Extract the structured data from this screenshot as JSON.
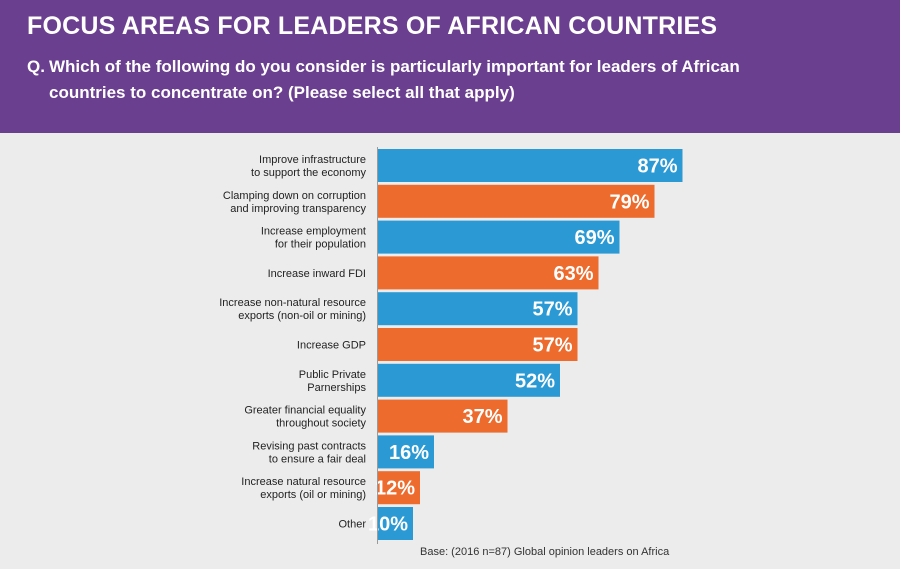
{
  "header": {
    "title": "FOCUS AREAS FOR LEADERS OF AFRICAN COUNTRIES",
    "question_prefix": "Q.",
    "question_line1": "Which of the following do you consider is particularly important for leaders of African",
    "question_line2": "countries to concentrate on? (Please select all that apply)"
  },
  "footnote": "Base: (2016 n=87) Global opinion leaders on Africa",
  "colors": {
    "header_bg": "#6b3f8f",
    "blue": "#2b9ad4",
    "orange": "#ec6b2d",
    "background": "#ececec"
  },
  "chart_data": {
    "type": "bar",
    "orientation": "horizontal",
    "title": "FOCUS AREAS FOR LEADERS OF AFRICAN COUNTRIES",
    "xlabel": "",
    "ylabel": "",
    "xlim": [
      0,
      100
    ],
    "unit": "%",
    "categories": [
      [
        "Improve infrastructure",
        "to support the economy"
      ],
      [
        "Clamping down on corruption",
        "and improving transparency"
      ],
      [
        "Increase employment",
        "for their population"
      ],
      [
        "Increase inward FDI"
      ],
      [
        "Increase non-natural resource",
        "exports (non-oil or mining)"
      ],
      [
        "Increase GDP"
      ],
      [
        "Public Private",
        "Parnerships"
      ],
      [
        "Greater financial equality",
        "throughout society"
      ],
      [
        "Revising past contracts",
        "to ensure a fair deal"
      ],
      [
        "Increase natural resource",
        "exports (oil or mining)"
      ],
      [
        "Other"
      ]
    ],
    "values": [
      87,
      79,
      69,
      63,
      57,
      57,
      52,
      37,
      16,
      12,
      10
    ],
    "bar_colors": [
      "blue",
      "orange",
      "blue",
      "orange",
      "blue",
      "orange",
      "blue",
      "orange",
      "blue",
      "orange",
      "blue"
    ]
  }
}
